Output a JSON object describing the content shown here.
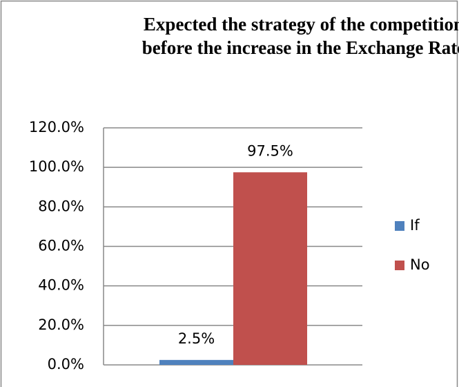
{
  "chart_data": {
    "type": "bar",
    "title": "Expected the strategy of the competition before the increase in the Exchange Rate",
    "categories": [
      null
    ],
    "series": [
      {
        "name": "If",
        "color": "#4f81bd",
        "values": [
          2.5
        ],
        "value_labels": [
          "2.5%"
        ]
      },
      {
        "name": "No",
        "color": "#c0504d",
        "values": [
          97.5
        ],
        "value_labels": [
          "97.5%"
        ]
      }
    ],
    "ylim": [
      0,
      120
    ],
    "yticks": [
      {
        "value": 0,
        "label": "0.0%"
      },
      {
        "value": 20,
        "label": "20.0%"
      },
      {
        "value": 40,
        "label": "40.0%"
      },
      {
        "value": 60,
        "label": "60.0%"
      },
      {
        "value": 80,
        "label": "80.0%"
      },
      {
        "value": 100,
        "label": "100.0%"
      },
      {
        "value": 120,
        "label": "120.0%"
      }
    ],
    "grid": true,
    "legend": "right"
  }
}
